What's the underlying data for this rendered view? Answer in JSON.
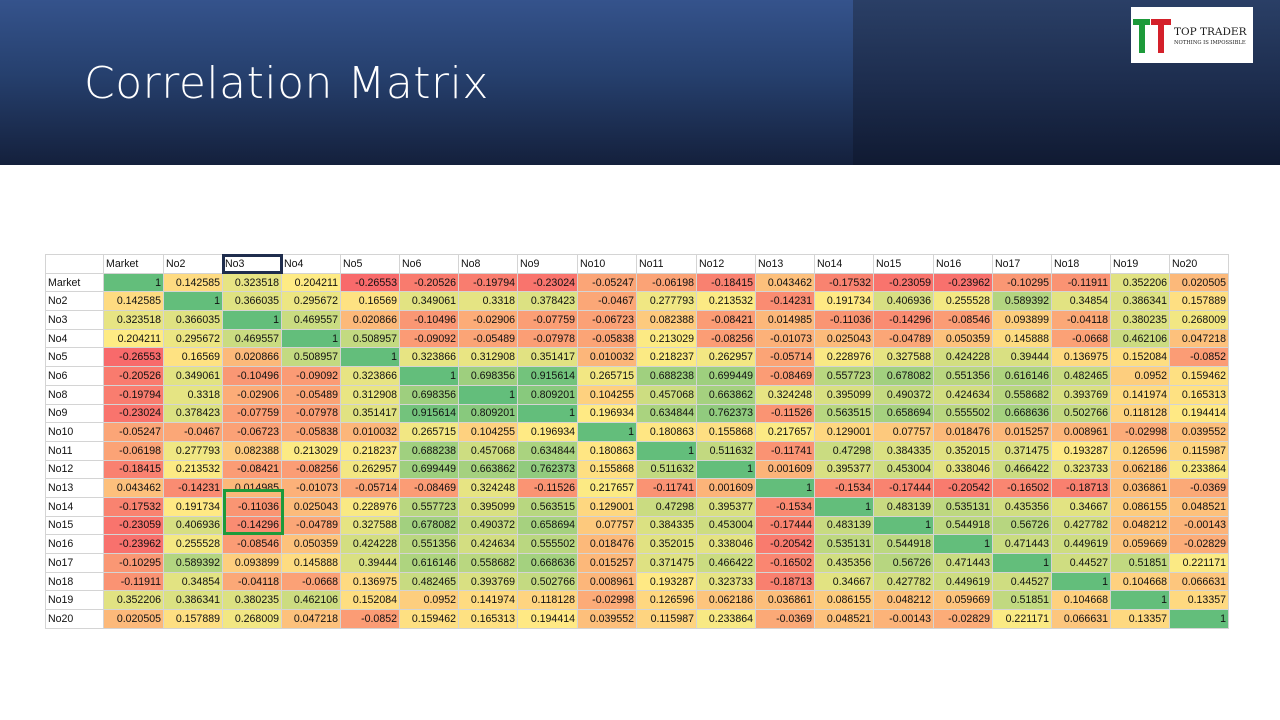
{
  "slide": {
    "title": "Correlation Matrix",
    "logo": {
      "brand": "TOP TRADER",
      "tagline": "NOTHING IS IMPOSSIBLE",
      "colors": {
        "green": "#1d9a3a",
        "red": "#d4202a"
      }
    }
  },
  "colors": {
    "header_dark": "#14203c",
    "header_light": "#35538c",
    "scale_low": "#f8696b",
    "scale_mid": "#ffeb84",
    "scale_high": "#63be7b",
    "highlight_header": "#1f2d4d",
    "highlight_cells": "#1d9a3a"
  },
  "matrix": {
    "labels": [
      "Market",
      "No2",
      "No3",
      "No4",
      "No5",
      "No6",
      "No8",
      "No9",
      "No10",
      "No11",
      "No12",
      "No13",
      "No14",
      "No15",
      "No16",
      "No17",
      "No18",
      "No19",
      "No20"
    ],
    "highlight_column": "No3",
    "highlight_cells": [
      [
        "No14",
        "No3"
      ],
      [
        "No15",
        "No3"
      ]
    ],
    "rows": [
      [
        "1",
        "0.142585",
        "0.323518",
        "0.204211",
        "-0.26553",
        "-0.20526",
        "-0.19794",
        "-0.23024",
        "-0.05247",
        "-0.06198",
        "-0.18415",
        "0.043462",
        "-0.17532",
        "-0.23059",
        "-0.23962",
        "-0.10295",
        "-0.11911",
        "0.352206",
        "0.020505"
      ],
      [
        "0.142585",
        "1",
        "0.366035",
        "0.295672",
        "0.16569",
        "0.349061",
        "0.3318",
        "0.378423",
        "-0.0467",
        "0.277793",
        "0.213532",
        "-0.14231",
        "0.191734",
        "0.406936",
        "0.255528",
        "0.589392",
        "0.34854",
        "0.386341",
        "0.157889"
      ],
      [
        "0.323518",
        "0.366035",
        "1",
        "0.469557",
        "0.020866",
        "-0.10496",
        "-0.02906",
        "-0.07759",
        "-0.06723",
        "0.082388",
        "-0.08421",
        "0.014985",
        "-0.11036",
        "-0.14296",
        "-0.08546",
        "0.093899",
        "-0.04118",
        "0.380235",
        "0.268009"
      ],
      [
        "0.204211",
        "0.295672",
        "0.469557",
        "1",
        "0.508957",
        "-0.09092",
        "-0.05489",
        "-0.07978",
        "-0.05838",
        "0.213029",
        "-0.08256",
        "-0.01073",
        "0.025043",
        "-0.04789",
        "0.050359",
        "0.145888",
        "-0.0668",
        "0.462106",
        "0.047218"
      ],
      [
        "-0.26553",
        "0.16569",
        "0.020866",
        "0.508957",
        "1",
        "0.323866",
        "0.312908",
        "0.351417",
        "0.010032",
        "0.218237",
        "0.262957",
        "-0.05714",
        "0.228976",
        "0.327588",
        "0.424228",
        "0.39444",
        "0.136975",
        "0.152084",
        "-0.0852"
      ],
      [
        "-0.20526",
        "0.349061",
        "-0.10496",
        "-0.09092",
        "0.323866",
        "1",
        "0.698356",
        "0.915614",
        "0.265715",
        "0.688238",
        "0.699449",
        "-0.08469",
        "0.557723",
        "0.678082",
        "0.551356",
        "0.616146",
        "0.482465",
        "0.0952",
        "0.159462"
      ],
      [
        "-0.19794",
        "0.3318",
        "-0.02906",
        "-0.05489",
        "0.312908",
        "0.698356",
        "1",
        "0.809201",
        "0.104255",
        "0.457068",
        "0.663862",
        "0.324248",
        "0.395099",
        "0.490372",
        "0.424634",
        "0.558682",
        "0.393769",
        "0.141974",
        "0.165313"
      ],
      [
        "-0.23024",
        "0.378423",
        "-0.07759",
        "-0.07978",
        "0.351417",
        "0.915614",
        "0.809201",
        "1",
        "0.196934",
        "0.634844",
        "0.762373",
        "-0.11526",
        "0.563515",
        "0.658694",
        "0.555502",
        "0.668636",
        "0.502766",
        "0.118128",
        "0.194414"
      ],
      [
        "-0.05247",
        "-0.0467",
        "-0.06723",
        "-0.05838",
        "0.010032",
        "0.265715",
        "0.104255",
        "0.196934",
        "1",
        "0.180863",
        "0.155868",
        "0.217657",
        "0.129001",
        "0.07757",
        "0.018476",
        "0.015257",
        "0.008961",
        "-0.02998",
        "0.039552"
      ],
      [
        "-0.06198",
        "0.277793",
        "0.082388",
        "0.213029",
        "0.218237",
        "0.688238",
        "0.457068",
        "0.634844",
        "0.180863",
        "1",
        "0.511632",
        "-0.11741",
        "0.47298",
        "0.384335",
        "0.352015",
        "0.371475",
        "0.193287",
        "0.126596",
        "0.115987"
      ],
      [
        "-0.18415",
        "0.213532",
        "-0.08421",
        "-0.08256",
        "0.262957",
        "0.699449",
        "0.663862",
        "0.762373",
        "0.155868",
        "0.511632",
        "1",
        "0.001609",
        "0.395377",
        "0.453004",
        "0.338046",
        "0.466422",
        "0.323733",
        "0.062186",
        "0.233864"
      ],
      [
        "0.043462",
        "-0.14231",
        "0.014985",
        "-0.01073",
        "-0.05714",
        "-0.08469",
        "0.324248",
        "-0.11526",
        "0.217657",
        "-0.11741",
        "0.001609",
        "1",
        "-0.1534",
        "-0.17444",
        "-0.20542",
        "-0.16502",
        "-0.18713",
        "0.036861",
        "-0.0369"
      ],
      [
        "-0.17532",
        "0.191734",
        "-0.11036",
        "0.025043",
        "0.228976",
        "0.557723",
        "0.395099",
        "0.563515",
        "0.129001",
        "0.47298",
        "0.395377",
        "-0.1534",
        "1",
        "0.483139",
        "0.535131",
        "0.435356",
        "0.34667",
        "0.086155",
        "0.048521"
      ],
      [
        "-0.23059",
        "0.406936",
        "-0.14296",
        "-0.04789",
        "0.327588",
        "0.678082",
        "0.490372",
        "0.658694",
        "0.07757",
        "0.384335",
        "0.453004",
        "-0.17444",
        "0.483139",
        "1",
        "0.544918",
        "0.56726",
        "0.427782",
        "0.048212",
        "-0.00143"
      ],
      [
        "-0.23962",
        "0.255528",
        "-0.08546",
        "0.050359",
        "0.424228",
        "0.551356",
        "0.424634",
        "0.555502",
        "0.018476",
        "0.352015",
        "0.338046",
        "-0.20542",
        "0.535131",
        "0.544918",
        "1",
        "0.471443",
        "0.449619",
        "0.059669",
        "-0.02829"
      ],
      [
        "-0.10295",
        "0.589392",
        "0.093899",
        "0.145888",
        "0.39444",
        "0.616146",
        "0.558682",
        "0.668636",
        "0.015257",
        "0.371475",
        "0.466422",
        "-0.16502",
        "0.435356",
        "0.56726",
        "0.471443",
        "1",
        "0.44527",
        "0.51851",
        "0.221171"
      ],
      [
        "-0.11911",
        "0.34854",
        "-0.04118",
        "-0.0668",
        "0.136975",
        "0.482465",
        "0.393769",
        "0.502766",
        "0.008961",
        "0.193287",
        "0.323733",
        "-0.18713",
        "0.34667",
        "0.427782",
        "0.449619",
        "0.44527",
        "1",
        "0.104668",
        "0.066631"
      ],
      [
        "0.352206",
        "0.386341",
        "0.380235",
        "0.462106",
        "0.152084",
        "0.0952",
        "0.141974",
        "0.118128",
        "-0.02998",
        "0.126596",
        "0.062186",
        "0.036861",
        "0.086155",
        "0.048212",
        "0.059669",
        "0.51851",
        "0.104668",
        "1",
        "0.13357"
      ],
      [
        "0.020505",
        "0.157889",
        "0.268009",
        "0.047218",
        "-0.0852",
        "0.159462",
        "0.165313",
        "0.194414",
        "0.039552",
        "0.115987",
        "0.233864",
        "-0.0369",
        "0.048521",
        "-0.00143",
        "-0.02829",
        "0.221171",
        "0.066631",
        "0.13357",
        "1"
      ]
    ]
  }
}
